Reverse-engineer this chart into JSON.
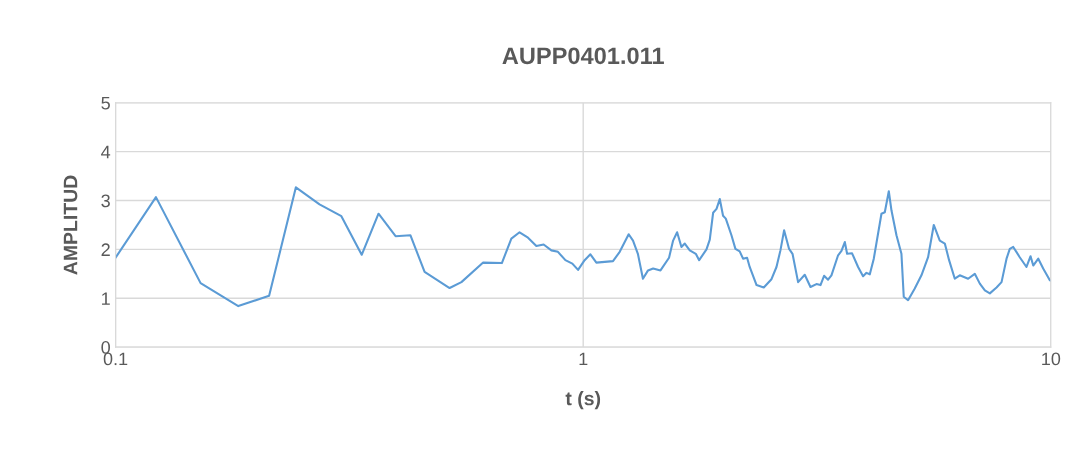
{
  "chart_data": {
    "type": "line",
    "title": "AUPP0401.011",
    "xlabel": "t (s)",
    "ylabel": "AMPLITUD",
    "log": "x",
    "xlim": [
      0.1,
      10
    ],
    "xticks": [
      0.1,
      1,
      10
    ],
    "ylim": [
      0,
      5
    ],
    "yticks": [
      0,
      1,
      2,
      3,
      4,
      5
    ],
    "grid": true,
    "series": [
      {
        "color": "#5b9bd5",
        "x": [
          0.1,
          0.122,
          0.152,
          0.183,
          0.213,
          0.243,
          0.273,
          0.304,
          0.336,
          0.365,
          0.397,
          0.427,
          0.458,
          0.518,
          0.549,
          0.611,
          0.67,
          0.702,
          0.731,
          0.762,
          0.794,
          0.823,
          0.855,
          0.883,
          0.916,
          0.948,
          0.975,
          1.007,
          1.036,
          1.067,
          1.158,
          1.197,
          1.251,
          1.278,
          1.309,
          1.342,
          1.376,
          1.411,
          1.463,
          1.526,
          1.557,
          1.588,
          1.622,
          1.649,
          1.69,
          1.741,
          1.77,
          1.835,
          1.865,
          1.896,
          1.928,
          1.959,
          1.991,
          2.018,
          2.075,
          2.116,
          2.161,
          2.197,
          2.241,
          2.27,
          2.348,
          2.433,
          2.527,
          2.59,
          2.641,
          2.689,
          2.756,
          2.803,
          2.881,
          2.977,
          3.062,
          3.153,
          3.217,
          3.274,
          3.339,
          3.395,
          3.508,
          3.567,
          3.626,
          3.667,
          3.758,
          3.871,
          3.967,
          4.034,
          4.101,
          4.182,
          4.343,
          4.415,
          4.503,
          4.562,
          4.676,
          4.792,
          4.847,
          4.951,
          5.117,
          5.288,
          5.464,
          5.619,
          5.788,
          5.933,
          6.059,
          6.232,
          6.387,
          6.654,
          6.877,
          7.049,
          7.226,
          7.405,
          7.654,
          7.845,
          8.04,
          8.17,
          8.31,
          8.58,
          8.87,
          9.05,
          9.17,
          9.4,
          9.63,
          9.95,
          10
        ],
        "values": [
          1.83,
          3.07,
          1.31,
          0.84,
          1.05,
          3.27,
          2.92,
          2.68,
          1.89,
          2.73,
          2.27,
          2.29,
          1.54,
          1.21,
          1.33,
          1.73,
          1.72,
          2.22,
          2.35,
          2.24,
          2.07,
          2.1,
          1.98,
          1.95,
          1.78,
          1.71,
          1.58,
          1.78,
          1.9,
          1.73,
          1.76,
          1.95,
          2.31,
          2.18,
          1.91,
          1.4,
          1.57,
          1.61,
          1.57,
          1.83,
          2.18,
          2.35,
          2.05,
          2.12,
          1.98,
          1.91,
          1.78,
          2.0,
          2.2,
          2.75,
          2.83,
          3.03,
          2.69,
          2.63,
          2.29,
          2.01,
          1.96,
          1.81,
          1.83,
          1.64,
          1.27,
          1.22,
          1.39,
          1.64,
          1.98,
          2.39,
          2.01,
          1.91,
          1.33,
          1.48,
          1.23,
          1.29,
          1.27,
          1.46,
          1.38,
          1.47,
          1.88,
          1.97,
          2.15,
          1.91,
          1.92,
          1.64,
          1.45,
          1.52,
          1.49,
          1.81,
          2.73,
          2.76,
          3.19,
          2.8,
          2.29,
          1.91,
          1.03,
          0.96,
          1.2,
          1.47,
          1.84,
          2.5,
          2.18,
          2.12,
          1.78,
          1.4,
          1.47,
          1.4,
          1.5,
          1.3,
          1.16,
          1.1,
          1.22,
          1.33,
          1.81,
          2.01,
          2.05,
          1.84,
          1.64,
          1.86,
          1.67,
          1.81,
          1.61,
          1.37,
          1.36
        ]
      }
    ]
  }
}
